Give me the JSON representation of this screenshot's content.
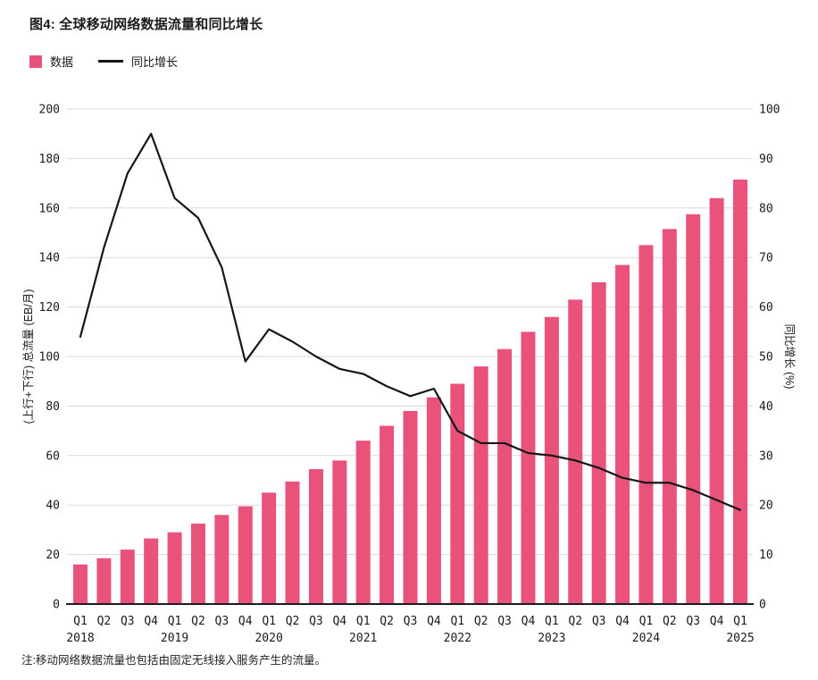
{
  "title": "图4: 全球移动网络数据流量和同比增长",
  "note": "注:移动网络数据流量也包括由固定无线接入服务产生的流量。",
  "legend": {
    "bar_label": "数据",
    "line_label": "同比增长"
  },
  "colors": {
    "bar": "#E9527B",
    "line": "#161616",
    "grid": "#DADADA",
    "axis": "#1C1C1C",
    "text": "#1B1B1B"
  },
  "chart_data": {
    "type": "bar+line combo",
    "title": "图4: 全球移动网络数据流量和同比增长",
    "grid": true,
    "legend_position": "top-left",
    "categories": [
      "Q1",
      "Q2",
      "Q3",
      "Q4",
      "Q1",
      "Q2",
      "Q3",
      "Q4",
      "Q1",
      "Q2",
      "Q3",
      "Q4",
      "Q1",
      "Q2",
      "Q3",
      "Q4",
      "Q1",
      "Q2",
      "Q3",
      "Q4",
      "Q1",
      "Q2",
      "Q3",
      "Q4",
      "Q1",
      "Q2",
      "Q3",
      "Q4",
      "Q1"
    ],
    "year_labels": [
      {
        "index": 0,
        "label": "2018"
      },
      {
        "index": 4,
        "label": "2019"
      },
      {
        "index": 8,
        "label": "2020"
      },
      {
        "index": 12,
        "label": "2021"
      },
      {
        "index": 16,
        "label": "2022"
      },
      {
        "index": 20,
        "label": "2023"
      },
      {
        "index": 24,
        "label": "2024"
      },
      {
        "index": 28,
        "label": "2025"
      }
    ],
    "series": [
      {
        "name": "数据",
        "type": "bar",
        "axis": "left",
        "unit": "EB/月",
        "values": [
          16,
          18.5,
          22,
          26.5,
          29,
          32.5,
          36,
          39.5,
          45,
          49.5,
          54.5,
          58,
          66,
          72,
          78,
          83.5,
          89,
          96,
          103,
          110,
          116,
          123,
          130,
          137,
          145,
          151.5,
          157.5,
          164,
          171.5
        ]
      },
      {
        "name": "同比增长",
        "type": "line",
        "axis": "right",
        "unit": "%",
        "values": [
          54,
          72,
          87,
          95,
          82,
          78,
          68,
          49,
          55.5,
          53,
          50,
          47.5,
          46.5,
          44,
          42,
          43.5,
          35,
          32.5,
          32.5,
          30.5,
          30,
          29,
          27.5,
          25.5,
          24.5,
          24.5,
          23,
          21,
          19
        ]
      }
    ],
    "left_axis": {
      "label": "(上行+下行) 总流量 (EB/月)",
      "min": 0,
      "max": 200,
      "ticks": [
        0,
        20,
        40,
        60,
        80,
        100,
        120,
        140,
        160,
        180,
        200
      ]
    },
    "right_axis": {
      "label": "同比增长 (%)",
      "min": 0,
      "max": 100,
      "ticks": [
        0,
        10,
        20,
        30,
        40,
        50,
        60,
        70,
        80,
        90,
        100
      ]
    }
  }
}
